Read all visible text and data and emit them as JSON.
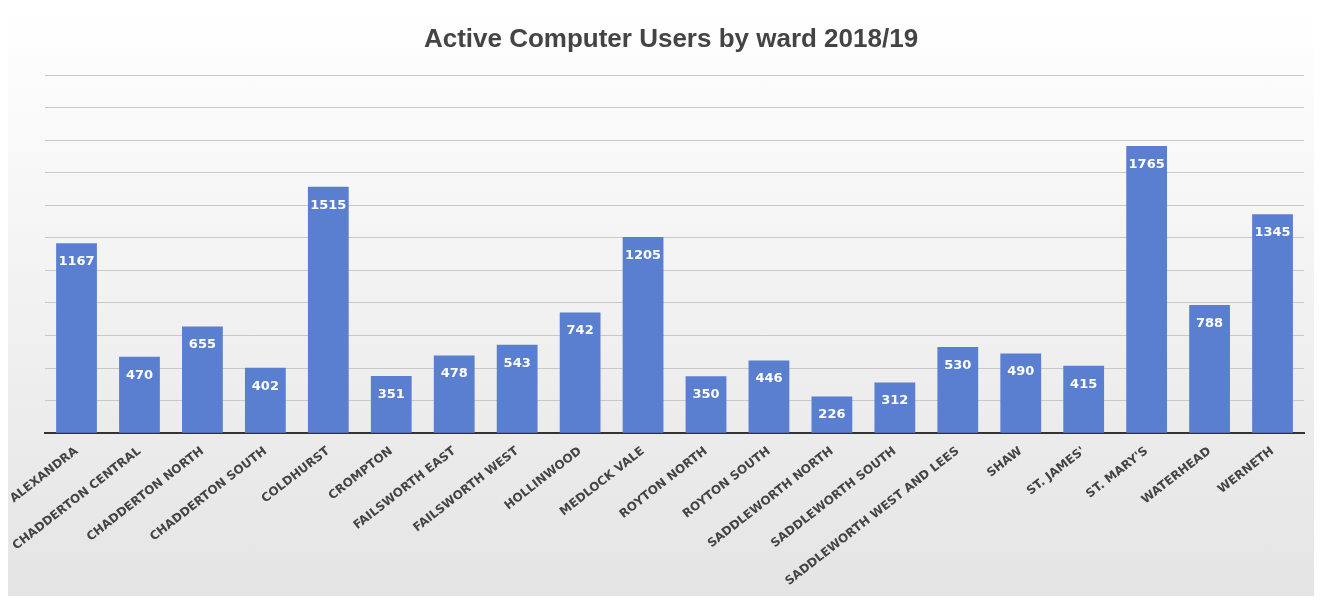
{
  "chart_data": {
    "type": "bar",
    "title": "Active Computer Users by ward 2018/19",
    "categories": [
      "ALEXANDRA",
      "CHADDERTON CENTRAL",
      "CHADDERTON NORTH",
      "CHADDERTON SOUTH",
      "COLDHURST",
      "CROMPTON",
      "FAILSWORTH EAST",
      "FAILSWORTH WEST",
      "HOLLINWOOD",
      "MEDLOCK VALE",
      "ROYTON NORTH",
      "ROYTON SOUTH",
      "SADDLEWORTH NORTH",
      "SADDLEWORTH SOUTH",
      "SADDLEWORTH WEST AND LEES",
      "SHAW",
      "ST. JAMES'",
      "ST. MARY'S",
      "WATERHEAD",
      "WERNETH"
    ],
    "values": [
      1167,
      470,
      655,
      402,
      1515,
      351,
      478,
      543,
      742,
      1205,
      350,
      446,
      226,
      312,
      530,
      490,
      415,
      1765,
      788,
      1345
    ],
    "color": "#5b7fd0",
    "ylim": [
      0,
      2200
    ],
    "yticks": [
      {
        "value": 0,
        "label": null
      },
      {
        "value": 200,
        "label": null
      },
      {
        "value": 400,
        "label": null
      },
      {
        "value": 600,
        "label": null
      },
      {
        "value": 800,
        "label": null
      },
      {
        "value": 1000,
        "label": null
      },
      {
        "value": 1200,
        "label": null
      },
      {
        "value": 1400,
        "label": null
      },
      {
        "value": 1600,
        "label": null
      },
      {
        "value": 1800,
        "label": null
      },
      {
        "value": 2000,
        "label": null
      },
      {
        "value": 2200,
        "label": null
      }
    ],
    "grid": "y",
    "data_labels": true,
    "tick_labels": "x",
    "legend": false
  }
}
